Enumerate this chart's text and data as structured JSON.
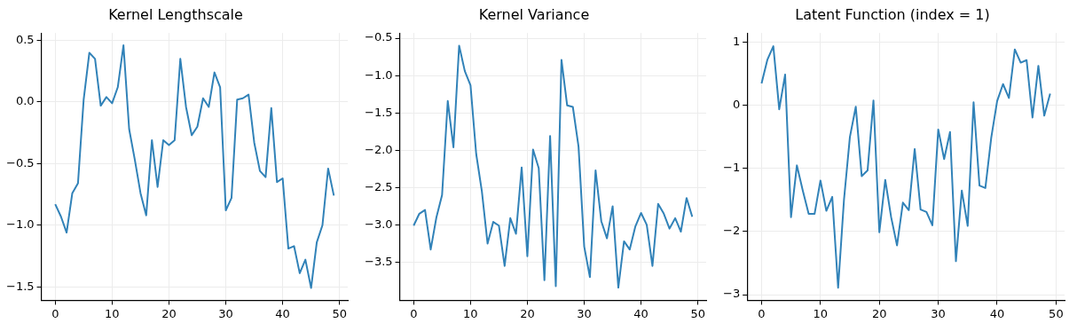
{
  "chart_data": [
    {
      "type": "line",
      "title": "Kernel Lengthscale",
      "x": [
        0,
        1,
        2,
        3,
        4,
        5,
        6,
        7,
        8,
        9,
        10,
        11,
        12,
        13,
        14,
        15,
        16,
        17,
        18,
        19,
        20,
        21,
        22,
        23,
        24,
        25,
        26,
        27,
        28,
        29,
        30,
        31,
        32,
        33,
        34,
        35,
        36,
        37,
        38,
        39,
        40,
        41,
        42,
        43,
        44,
        45,
        46,
        47,
        48,
        49
      ],
      "series": [
        {
          "color": "#3182b8",
          "values": [
            -0.83,
            -0.93,
            -1.06,
            -0.74,
            -0.66,
            0.02,
            0.4,
            0.35,
            -0.03,
            0.04,
            -0.01,
            0.12,
            0.46,
            -0.22,
            -0.47,
            -0.74,
            -0.92,
            -0.31,
            -0.69,
            -0.31,
            -0.35,
            -0.31,
            0.35,
            -0.04,
            -0.27,
            -0.2,
            0.03,
            -0.04,
            0.24,
            0.12,
            -0.88,
            -0.78,
            0.02,
            0.03,
            0.06,
            -0.33,
            -0.56,
            -0.61,
            -0.05,
            -0.65,
            -0.62,
            -1.19,
            -1.17,
            -1.39,
            -1.28,
            -1.51,
            -1.14,
            -1.0,
            -0.54,
            -0.76
          ]
        }
      ],
      "xlim": [
        -2.45,
        51.45
      ],
      "xticks": [
        0,
        10,
        20,
        30,
        40,
        50
      ],
      "ylim": [
        -1.61,
        0.56
      ],
      "yticks": [
        {
          "value": -1.5,
          "label": "−1.5"
        },
        {
          "value": -1,
          "label": "−1.0"
        },
        {
          "value": -0.5,
          "label": "−0.5"
        },
        {
          "value": 0,
          "label": "0.0"
        },
        {
          "value": 0.5,
          "label": "0.5"
        }
      ],
      "grid": true,
      "legend": false,
      "marker": "none",
      "line_style": "solid"
    },
    {
      "type": "line",
      "title": "Kernel Variance",
      "x": [
        0,
        1,
        2,
        3,
        4,
        5,
        6,
        7,
        8,
        9,
        10,
        11,
        12,
        13,
        14,
        15,
        16,
        17,
        18,
        19,
        20,
        21,
        22,
        23,
        24,
        25,
        26,
        27,
        28,
        29,
        30,
        31,
        32,
        33,
        34,
        35,
        36,
        37,
        38,
        39,
        40,
        41,
        42,
        43,
        44,
        45,
        46,
        47,
        48,
        49
      ],
      "series": [
        {
          "color": "#3182b8",
          "values": [
            -3.01,
            -2.85,
            -2.8,
            -3.33,
            -2.9,
            -2.6,
            -1.34,
            -1.96,
            -0.6,
            -0.94,
            -1.13,
            -2.05,
            -2.55,
            -3.25,
            -2.96,
            -3.01,
            -3.55,
            -2.91,
            -3.12,
            -2.23,
            -3.42,
            -1.99,
            -2.24,
            -3.74,
            -1.81,
            -3.82,
            -0.79,
            -1.4,
            -1.42,
            -1.95,
            -3.29,
            -3.7,
            -2.27,
            -2.95,
            -3.18,
            -2.75,
            -3.84,
            -3.22,
            -3.33,
            -3.02,
            -2.84,
            -3.0,
            -3.55,
            -2.72,
            -2.85,
            -3.05,
            -2.91,
            -3.09,
            -2.64,
            -2.89
          ]
        }
      ],
      "xlim": [
        -2.45,
        51.45
      ],
      "xticks": [
        0,
        10,
        20,
        30,
        40,
        50
      ],
      "ylim": [
        -4.01,
        -0.43
      ],
      "yticks": [
        {
          "value": -3.5,
          "label": "−3.5"
        },
        {
          "value": -3,
          "label": "−3.0"
        },
        {
          "value": -2.5,
          "label": "−2.5"
        },
        {
          "value": -2,
          "label": "−2.0"
        },
        {
          "value": -1.5,
          "label": "−1.5"
        },
        {
          "value": -1,
          "label": "−1.0"
        },
        {
          "value": -0.5,
          "label": "−0.5"
        }
      ],
      "grid": true,
      "legend": false,
      "marker": "none",
      "line_style": "solid"
    },
    {
      "type": "line",
      "title": "Latent Function (index = 1)",
      "x": [
        0,
        1,
        2,
        3,
        4,
        5,
        6,
        7,
        8,
        9,
        10,
        11,
        12,
        13,
        14,
        15,
        16,
        17,
        18,
        19,
        20,
        21,
        22,
        23,
        24,
        25,
        26,
        27,
        28,
        29,
        30,
        31,
        32,
        33,
        34,
        35,
        36,
        37,
        38,
        39,
        40,
        41,
        42,
        43,
        44,
        45,
        46,
        47,
        48,
        49
      ],
      "series": [
        {
          "color": "#3182b8",
          "values": [
            0.35,
            0.73,
            0.94,
            -0.06,
            0.49,
            -1.77,
            -0.95,
            -1.35,
            -1.72,
            -1.72,
            -1.19,
            -1.67,
            -1.45,
            -2.89,
            -1.49,
            -0.5,
            -0.02,
            -1.12,
            -1.03,
            0.08,
            -2.01,
            -1.18,
            -1.77,
            -2.22,
            -1.54,
            -1.66,
            -0.69,
            -1.65,
            -1.69,
            -1.9,
            -0.38,
            -0.85,
            -0.42,
            -2.47,
            -1.35,
            -1.91,
            0.05,
            -1.27,
            -1.31,
            -0.51,
            0.07,
            0.34,
            0.12,
            0.89,
            0.68,
            0.72,
            -0.19,
            0.63,
            -0.16,
            0.19
          ]
        }
      ],
      "xlim": [
        -2.45,
        51.45
      ],
      "xticks": [
        0,
        10,
        20,
        30,
        40,
        50
      ],
      "ylim": [
        -3.09,
        1.15
      ],
      "yticks": [
        {
          "value": -3,
          "label": "−3"
        },
        {
          "value": -2,
          "label": "−2"
        },
        {
          "value": -1,
          "label": "−1"
        },
        0,
        1
      ],
      "grid": true,
      "legend": false,
      "marker": "none",
      "line_style": "solid"
    }
  ]
}
